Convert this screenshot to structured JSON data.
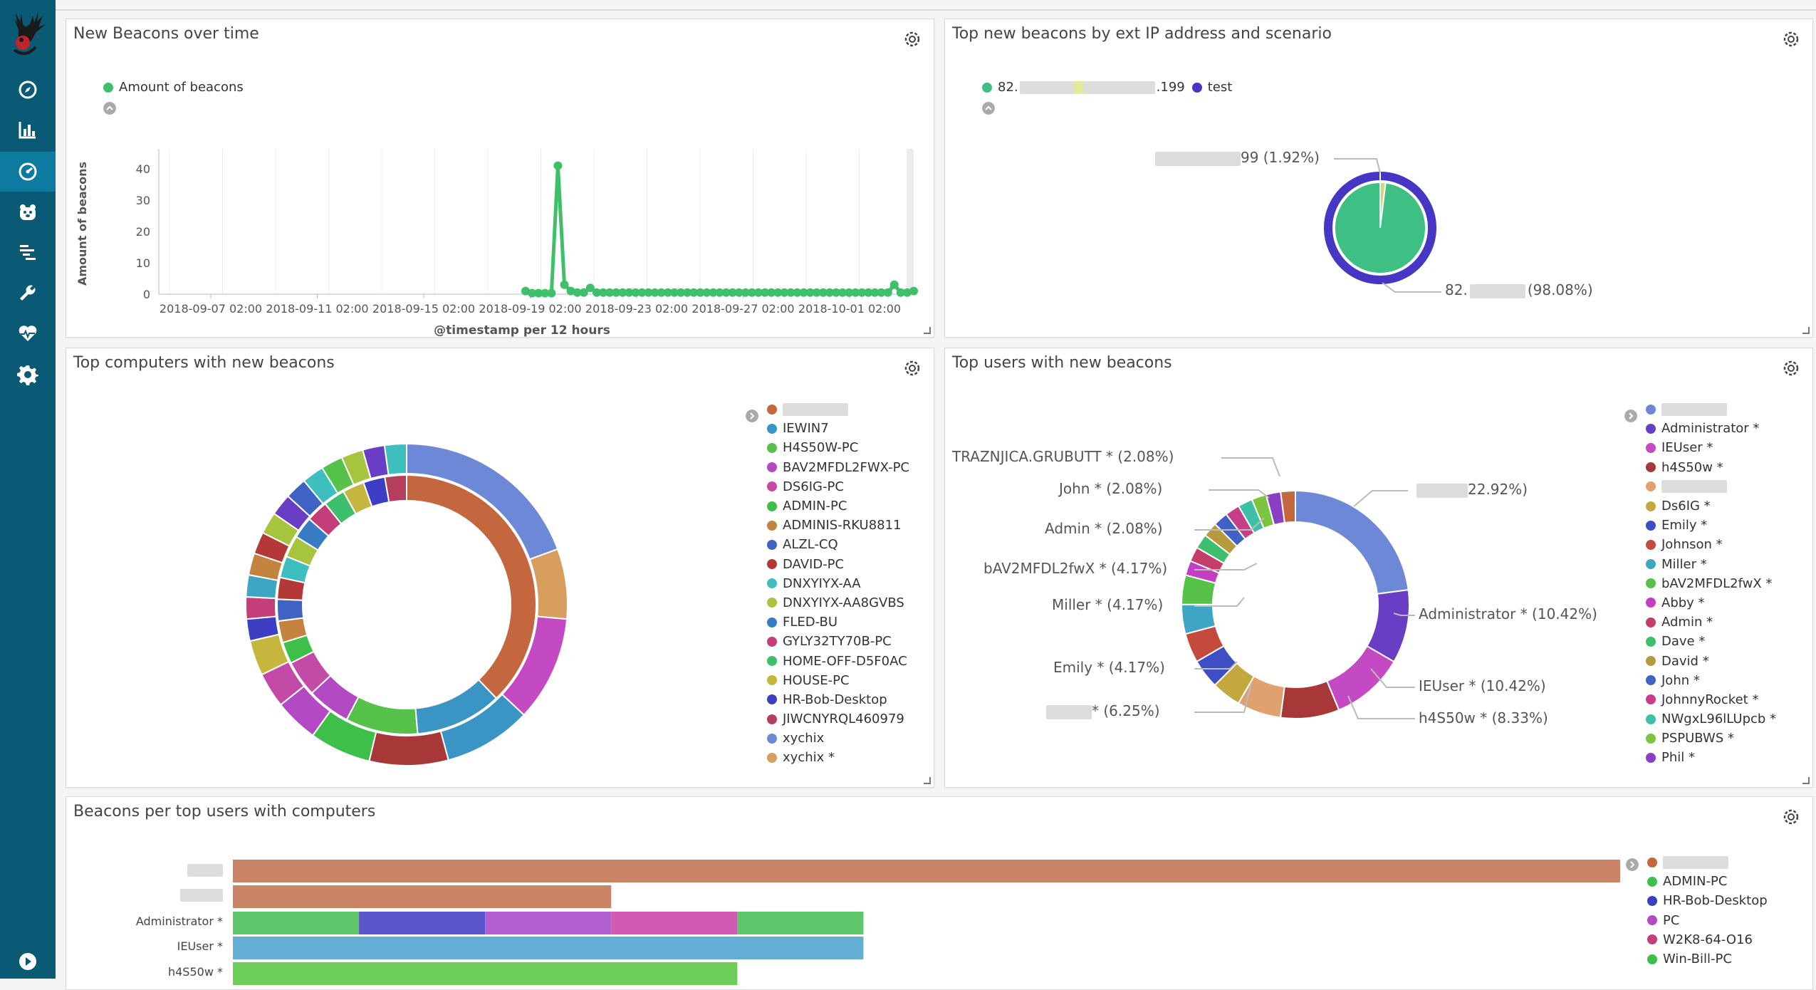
{
  "dashboard": {
    "panels": {
      "beacons_over_time": {
        "title": "New Beacons over time",
        "legend": "Amount of beacons",
        "ylabel": "Amount of beacons",
        "xlabel": "@timestamp per 12 hours",
        "yticks": [
          "40",
          "30",
          "20",
          "10",
          "0"
        ],
        "xticks": [
          "2018-09-07 02:00",
          "2018-09-11 02:00",
          "2018-09-15 02:00",
          "2018-09-19 02:00",
          "2018-09-23 02:00",
          "2018-09-27 02:00",
          "2018-10-01 02:00"
        ]
      },
      "top_ip_scenario": {
        "title": "Top new beacons by ext IP address and scenario",
        "legend": [
          {
            "label": "82.",
            "suffix": ".199",
            "color": "#3ebf84"
          },
          {
            "label": "test",
            "color": "#4536c4"
          }
        ],
        "slice_labels": {
          "small": "99 (1.92%)",
          "large_prefix": "82.",
          "large_suffix": "(98.08%)"
        }
      },
      "top_computers": {
        "title": "Top computers with new beacons",
        "legend": [
          {
            "label": "",
            "color": "#c4663e"
          },
          {
            "label": "IEWIN7",
            "color": "#3a94c4"
          },
          {
            "label": "H4S50W-PC",
            "color": "#57c24a"
          },
          {
            "label": "BAV2MFDL2FWX-PC",
            "color": "#b34ac4"
          },
          {
            "label": "DS6IG-PC",
            "color": "#c44aa8"
          },
          {
            "label": "ADMIN-PC",
            "color": "#3ebf4a"
          },
          {
            "label": "ADMINIS-RKU8811",
            "color": "#c4833e"
          },
          {
            "label": "ALZL-CQ",
            "color": "#3e63c4"
          },
          {
            "label": "DAVID-PC",
            "color": "#b53838"
          },
          {
            "label": "DNXYIYX-AA",
            "color": "#3ebfbf"
          },
          {
            "label": "DNXYIYX-AA8GVBS",
            "color": "#a6c43e"
          },
          {
            "label": "FLED-BU",
            "color": "#3a7cc4"
          },
          {
            "label": "GYLY32TY70B-PC",
            "color": "#c43e7a"
          },
          {
            "label": "HOME-OFF-D5F0AC",
            "color": "#3ebf6e"
          },
          {
            "label": "HOUSE-PC",
            "color": "#c4b63e"
          },
          {
            "label": "HR-Bob-Desktop",
            "color": "#3e3ec4"
          },
          {
            "label": "JIWCNYRQL460979",
            "color": "#b53e5e"
          },
          {
            "label": "xychix",
            "color": "#6e88d8"
          },
          {
            "label": "xychix *",
            "color": "#d89e5e"
          }
        ]
      },
      "top_users": {
        "title": "Top users with new beacons",
        "legend": [
          {
            "label": "",
            "color": "#6e88d8"
          },
          {
            "label": "Administrator *",
            "color": "#6a3ec4"
          },
          {
            "label": "IEUser *",
            "color": "#c44ac4"
          },
          {
            "label": "h4S50w *",
            "color": "#a83838"
          },
          {
            "label": "",
            "color": "#e0a070"
          },
          {
            "label": "Ds6IG *",
            "color": "#c4a83e"
          },
          {
            "label": "Emily *",
            "color": "#3e4ec4"
          },
          {
            "label": "Johnson *",
            "color": "#c44a3e"
          },
          {
            "label": "Miller *",
            "color": "#3ea6c4"
          },
          {
            "label": "bAV2MFDL2fwX *",
            "color": "#57c24a"
          },
          {
            "label": "Abby *",
            "color": "#c43ec4"
          },
          {
            "label": "Admin *",
            "color": "#c43e6a"
          },
          {
            "label": "Dave *",
            "color": "#3ebf6e"
          },
          {
            "label": "David *",
            "color": "#b89a3e"
          },
          {
            "label": "John *",
            "color": "#3e63c4"
          },
          {
            "label": "JohnnyRocket *",
            "color": "#c43e8a"
          },
          {
            "label": "NWgxL96lLUpcb *",
            "color": "#3ebfa8"
          },
          {
            "label": "PSPUBWS *",
            "color": "#7ac43e"
          },
          {
            "label": "Phil *",
            "color": "#8a3ec4"
          }
        ],
        "callouts": {
          "top_left": "TRAZNJICA.GRUBUTT * (2.08%)",
          "john": "John * (2.08%)",
          "admin": "Admin * (2.08%)",
          "bav": "bAV2MFDL2fwX * (4.17%)",
          "miller": "Miller * (4.17%)",
          "emily": "Emily * (4.17%)",
          "blur_left": "* (6.25%)",
          "blur_right": "22.92%)",
          "administrator": "Administrator * (10.42%)",
          "ieuser": "IEUser * (10.42%)",
          "h4s50w": "h4S50w * (8.33%)"
        }
      },
      "beacons_per_user": {
        "title": "Beacons per top users with computers",
        "rows": [
          {
            "label": ""
          },
          {
            "label": ""
          },
          {
            "label": "Administrator *"
          },
          {
            "label": "IEUser *"
          },
          {
            "label": "h4S50w *"
          }
        ],
        "legend": [
          {
            "label": "",
            "color": "#c4663e"
          },
          {
            "label": "ADMIN-PC",
            "color": "#3ebf4a"
          },
          {
            "label": "HR-Bob-Desktop",
            "color": "#3e3ec4"
          },
          {
            "label": "PC",
            "color": "#b34ac4"
          },
          {
            "label": "W2K8-64-O16",
            "color": "#c43e7a"
          },
          {
            "label": "Win-Bill-PC",
            "color": "#3ebf4a"
          }
        ]
      }
    }
  },
  "chart_data": [
    {
      "type": "line",
      "title": "New Beacons over time",
      "xlabel": "@timestamp per 12 hours",
      "ylabel": "Amount of beacons",
      "ylim": [
        0,
        45
      ],
      "series": [
        {
          "name": "Amount of beacons",
          "color": "#3ebf6a",
          "points": [
            [
              0,
              1
            ],
            [
              1,
              0.3
            ],
            [
              2,
              0.3
            ],
            [
              3,
              0.3
            ],
            [
              4,
              0.3
            ],
            [
              5,
              41
            ],
            [
              6,
              3
            ],
            [
              7,
              1
            ],
            [
              8,
              0.5
            ],
            [
              9,
              0.5
            ],
            [
              10,
              2
            ],
            [
              11,
              0.5
            ],
            [
              12,
              0.5
            ],
            [
              13,
              0.5
            ],
            [
              14,
              0.5
            ],
            [
              15,
              0.5
            ],
            [
              16,
              0.5
            ],
            [
              17,
              0.5
            ],
            [
              18,
              0.5
            ],
            [
              19,
              0.5
            ],
            [
              20,
              0.5
            ],
            [
              21,
              0.5
            ],
            [
              22,
              0.5
            ],
            [
              23,
              0.5
            ],
            [
              24,
              0.5
            ],
            [
              25,
              0.5
            ],
            [
              26,
              0.5
            ],
            [
              27,
              0.5
            ],
            [
              28,
              0.5
            ],
            [
              29,
              0.5
            ],
            [
              30,
              0.5
            ],
            [
              31,
              0.5
            ],
            [
              32,
              0.5
            ],
            [
              33,
              0.5
            ],
            [
              34,
              0.5
            ],
            [
              35,
              0.5
            ],
            [
              36,
              0.5
            ],
            [
              37,
              0.5
            ],
            [
              38,
              0.5
            ],
            [
              39,
              0.5
            ],
            [
              40,
              0.5
            ],
            [
              41,
              0.5
            ],
            [
              42,
              0.5
            ],
            [
              43,
              0.5
            ],
            [
              44,
              0.5
            ],
            [
              45,
              0.5
            ],
            [
              46,
              0.5
            ],
            [
              47,
              0.5
            ],
            [
              48,
              0.5
            ],
            [
              49,
              0.5
            ],
            [
              50,
              0.5
            ],
            [
              51,
              0.5
            ],
            [
              52,
              0.5
            ],
            [
              53,
              0.5
            ],
            [
              54,
              0.5
            ],
            [
              55,
              0.5
            ],
            [
              56,
              0.5
            ],
            [
              57,
              3
            ],
            [
              58,
              0.5
            ],
            [
              59,
              0.5
            ],
            [
              60,
              1
            ]
          ]
        }
      ]
    },
    {
      "type": "pie",
      "title": "Top new beacons by ext IP address and scenario",
      "outer": [
        {
          "name": "test",
          "value": 100,
          "color": "#4536c4"
        }
      ],
      "inner": [
        {
          "name": "82.*",
          "value": 98.08,
          "color": "#3ebf84"
        },
        {
          "name": "*.199",
          "value": 1.92,
          "color": "#d4d870"
        }
      ]
    },
    {
      "type": "pie",
      "title": "Top computers with new beacons",
      "outer": [
        {
          "value": 22,
          "color": "#6e88d8"
        },
        {
          "value": 8,
          "color": "#d89e5e"
        },
        {
          "value": 12,
          "color": "#c44ac4"
        },
        {
          "value": 10,
          "color": "#3a94c4"
        },
        {
          "value": 9,
          "color": "#a83838"
        },
        {
          "value": 7,
          "color": "#3ebf4a"
        },
        {
          "value": 5,
          "color": "#b34ac4"
        },
        {
          "value": 4,
          "color": "#c44aa8"
        },
        {
          "value": 4,
          "color": "#c4b63e"
        },
        {
          "value": 2.5,
          "color": "#3e3ec4"
        },
        {
          "value": 2.5,
          "color": "#c43e7a"
        },
        {
          "value": 2.5,
          "color": "#3ea6c4"
        },
        {
          "value": 2.5,
          "color": "#c4833e"
        },
        {
          "value": 2.5,
          "color": "#b53838"
        },
        {
          "value": 2.5,
          "color": "#a6c43e"
        },
        {
          "value": 2.5,
          "color": "#6a3ec4"
        },
        {
          "value": 2.5,
          "color": "#3e63c4"
        },
        {
          "value": 2.5,
          "color": "#3ebfbf"
        },
        {
          "value": 2.5,
          "color": "#57c24a"
        },
        {
          "value": 2.5,
          "color": "#a6c43e"
        },
        {
          "value": 2.5,
          "color": "#6a3ec4"
        },
        {
          "value": 2.5,
          "color": "#3ebfbf"
        }
      ],
      "inner": [
        {
          "value": 42,
          "color": "#c4663e"
        },
        {
          "value": 12,
          "color": "#3a94c4"
        },
        {
          "value": 10,
          "color": "#57c24a"
        },
        {
          "value": 6,
          "color": "#b34ac4"
        },
        {
          "value": 5,
          "color": "#c44aa8"
        },
        {
          "value": 3,
          "color": "#3ebf4a"
        },
        {
          "value": 3,
          "color": "#c4833e"
        },
        {
          "value": 3,
          "color": "#3e63c4"
        },
        {
          "value": 3,
          "color": "#b53838"
        },
        {
          "value": 3,
          "color": "#3ebfbf"
        },
        {
          "value": 3,
          "color": "#a6c43e"
        },
        {
          "value": 3,
          "color": "#3a7cc4"
        },
        {
          "value": 3,
          "color": "#c43e7a"
        },
        {
          "value": 3,
          "color": "#3ebf6e"
        },
        {
          "value": 3,
          "color": "#c4b63e"
        },
        {
          "value": 3,
          "color": "#3e3ec4"
        },
        {
          "value": 3,
          "color": "#b53e5e"
        }
      ]
    },
    {
      "type": "pie",
      "title": "Top users with new beacons",
      "slices": [
        {
          "value": 22.92,
          "color": "#6e88d8"
        },
        {
          "value": 10.42,
          "color": "#6a3ec4"
        },
        {
          "value": 10.42,
          "color": "#c44ac4"
        },
        {
          "value": 8.33,
          "color": "#a83838"
        },
        {
          "value": 6.25,
          "color": "#e0a070"
        },
        {
          "value": 4.17,
          "color": "#c4a83e"
        },
        {
          "value": 4.17,
          "color": "#3e4ec4"
        },
        {
          "value": 4.17,
          "color": "#c44a3e"
        },
        {
          "value": 4.17,
          "color": "#3ea6c4"
        },
        {
          "value": 4.17,
          "color": "#57c24a"
        },
        {
          "value": 2.08,
          "color": "#c43ec4"
        },
        {
          "value": 2.08,
          "color": "#c43e6a"
        },
        {
          "value": 2.08,
          "color": "#3ebf6e"
        },
        {
          "value": 2.08,
          "color": "#b89a3e"
        },
        {
          "value": 2.08,
          "color": "#3e63c4"
        },
        {
          "value": 2.08,
          "color": "#c43e8a"
        },
        {
          "value": 2.08,
          "color": "#3ebfa8"
        },
        {
          "value": 2.08,
          "color": "#7ac43e"
        },
        {
          "value": 2.08,
          "color": "#8a3ec4"
        },
        {
          "value": 2.08,
          "color": "#c4663e"
        }
      ]
    },
    {
      "type": "bar",
      "title": "Beacons per top users with computers",
      "orientation": "horizontal",
      "xlim": [
        0,
        22
      ],
      "rows": [
        {
          "segments": [
            {
              "value": 22,
              "color": "#c98565"
            }
          ]
        },
        {
          "segments": [
            {
              "value": 6,
              "color": "#c98565"
            }
          ]
        },
        {
          "segments": [
            {
              "value": 2,
              "color": "#5dc76a"
            },
            {
              "value": 2,
              "color": "#5a55cc"
            },
            {
              "value": 2,
              "color": "#b05ed0"
            },
            {
              "value": 2,
              "color": "#d05ab4"
            },
            {
              "value": 2,
              "color": "#5dc76a"
            }
          ]
        },
        {
          "segments": [
            {
              "value": 10,
              "color": "#64add4"
            }
          ]
        },
        {
          "segments": [
            {
              "value": 8,
              "color": "#6dce5a"
            }
          ]
        }
      ]
    }
  ]
}
